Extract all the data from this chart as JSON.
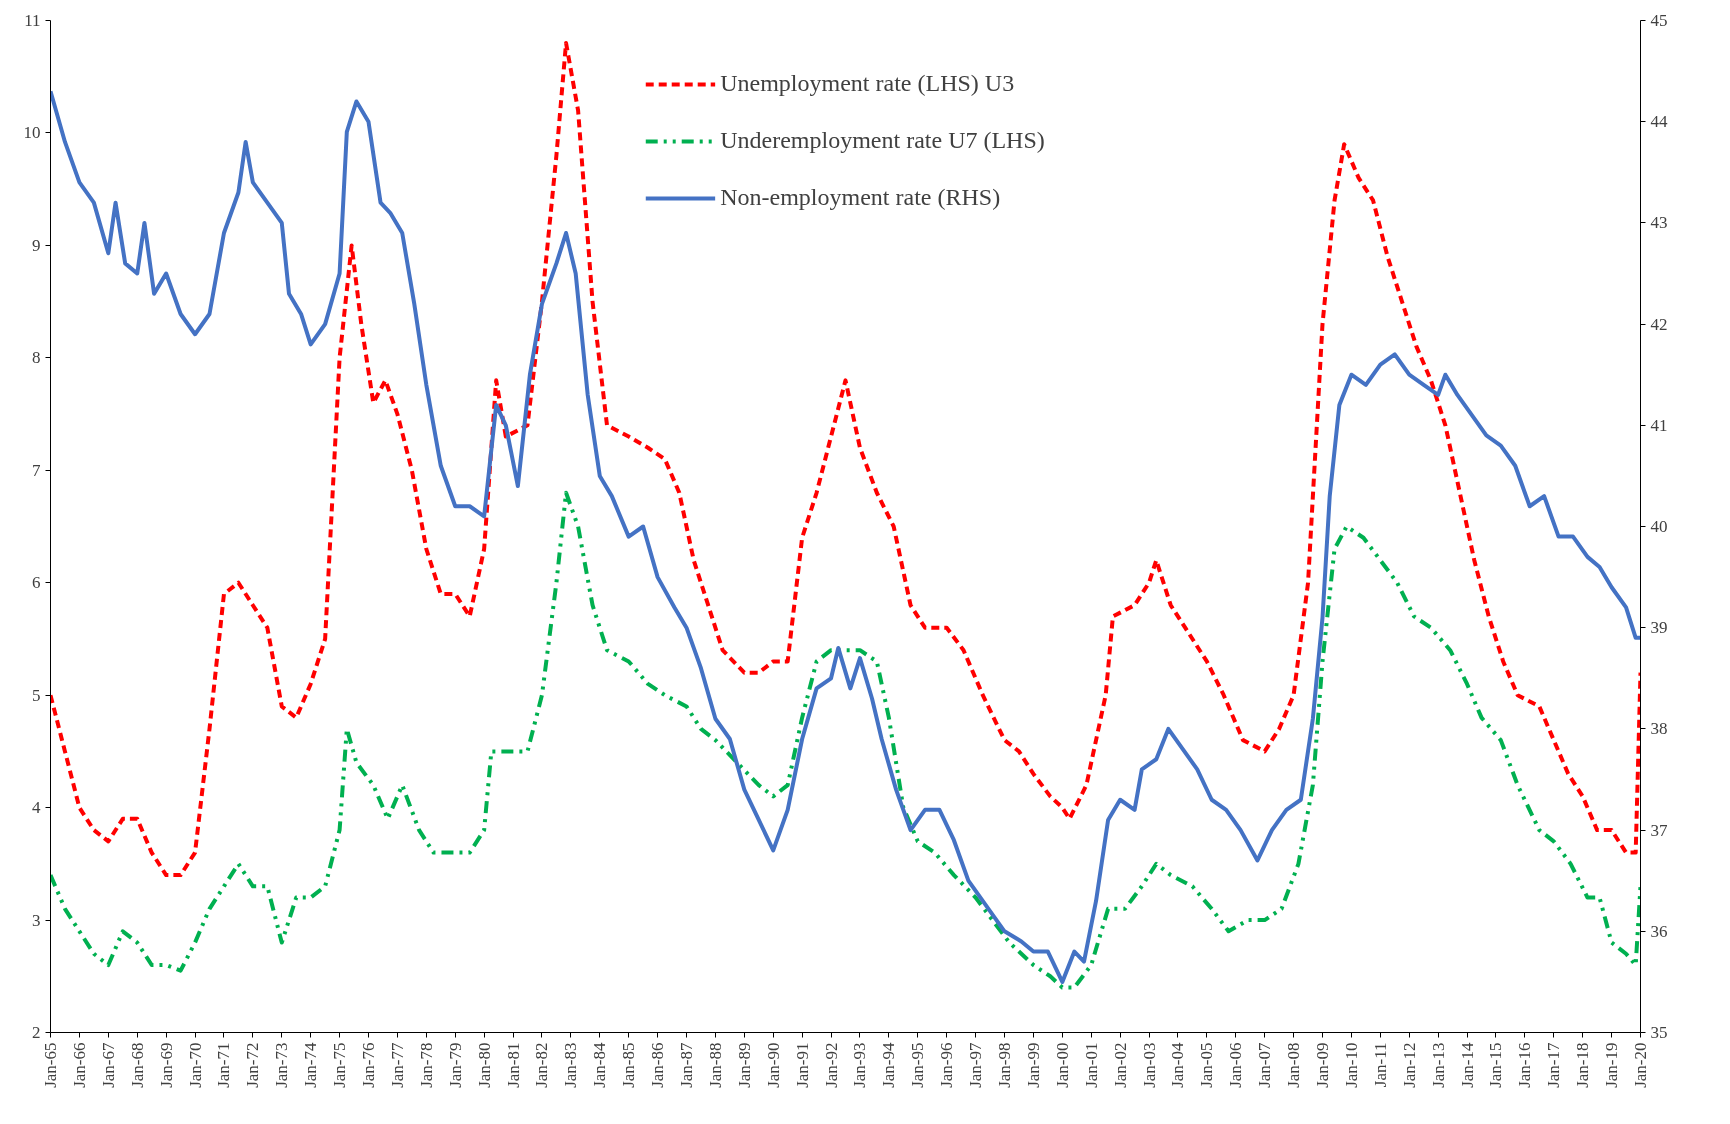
{
  "chart_data": {
    "type": "line",
    "legend": "top",
    "grid": false,
    "xlim": [
      "1965-01",
      "2020-01"
    ],
    "xticks": [
      {
        "value": "1965-01",
        "label": "Jan-65"
      },
      {
        "value": "1966-01",
        "label": "Jan-66"
      },
      {
        "value": "1967-01",
        "label": "Jan-67"
      },
      {
        "value": "1968-01",
        "label": "Jan-68"
      },
      {
        "value": "1969-01",
        "label": "Jan-69"
      },
      {
        "value": "1970-01",
        "label": "Jan-70"
      },
      {
        "value": "1971-01",
        "label": "Jan-71"
      },
      {
        "value": "1972-01",
        "label": "Jan-72"
      },
      {
        "value": "1973-01",
        "label": "Jan-73"
      },
      {
        "value": "1974-01",
        "label": "Jan-74"
      },
      {
        "value": "1975-01",
        "label": "Jan-75"
      },
      {
        "value": "1976-01",
        "label": "Jan-76"
      },
      {
        "value": "1977-01",
        "label": "Jan-77"
      },
      {
        "value": "1978-01",
        "label": "Jan-78"
      },
      {
        "value": "1979-01",
        "label": "Jan-79"
      },
      {
        "value": "1980-01",
        "label": "Jan-80"
      },
      {
        "value": "1981-01",
        "label": "Jan-81"
      },
      {
        "value": "1982-01",
        "label": "Jan-82"
      },
      {
        "value": "1983-01",
        "label": "Jan-83"
      },
      {
        "value": "1984-01",
        "label": "Jan-84"
      },
      {
        "value": "1985-01",
        "label": "Jan-85"
      },
      {
        "value": "1986-01",
        "label": "Jan-86"
      },
      {
        "value": "1987-01",
        "label": "Jan-87"
      },
      {
        "value": "1988-01",
        "label": "Jan-88"
      },
      {
        "value": "1989-01",
        "label": "Jan-89"
      },
      {
        "value": "1990-01",
        "label": "Jan-90"
      },
      {
        "value": "1991-01",
        "label": "Jan-91"
      },
      {
        "value": "1992-01",
        "label": "Jan-92"
      },
      {
        "value": "1993-01",
        "label": "Jan-93"
      },
      {
        "value": "1994-01",
        "label": "Jan-94"
      },
      {
        "value": "1995-01",
        "label": "Jan-95"
      },
      {
        "value": "1996-01",
        "label": "Jan-96"
      },
      {
        "value": "1997-01",
        "label": "Jan-97"
      },
      {
        "value": "1998-01",
        "label": "Jan-98"
      },
      {
        "value": "1999-01",
        "label": "Jan-99"
      },
      {
        "value": "2000-01",
        "label": "Jan-00"
      },
      {
        "value": "2001-01",
        "label": "Jan-01"
      },
      {
        "value": "2002-01",
        "label": "Jan-02"
      },
      {
        "value": "2003-01",
        "label": "Jan-03"
      },
      {
        "value": "2004-01",
        "label": "Jan-04"
      },
      {
        "value": "2005-01",
        "label": "Jan-05"
      },
      {
        "value": "2006-01",
        "label": "Jan-06"
      },
      {
        "value": "2007-01",
        "label": "Jan-07"
      },
      {
        "value": "2008-01",
        "label": "Jan-08"
      },
      {
        "value": "2009-01",
        "label": "Jan-09"
      },
      {
        "value": "2010-01",
        "label": "Jan-10"
      },
      {
        "value": "2011-01",
        "label": "Jan-11"
      },
      {
        "value": "2012-01",
        "label": "Jan-12"
      },
      {
        "value": "2013-01",
        "label": "Jan-13"
      },
      {
        "value": "2014-01",
        "label": "Jan-14"
      },
      {
        "value": "2015-01",
        "label": "Jan-15"
      },
      {
        "value": "2016-01",
        "label": "Jan-16"
      },
      {
        "value": "2017-01",
        "label": "Jan-17"
      },
      {
        "value": "2018-01",
        "label": "Jan-18"
      },
      {
        "value": "2019-01",
        "label": "Jan-19"
      },
      {
        "value": "2020-01",
        "label": "Jan-20"
      }
    ],
    "ylim": [
      2,
      11
    ],
    "yticks": [
      2,
      3,
      4,
      5,
      6,
      7,
      8,
      9,
      10,
      11
    ],
    "y2lim": [
      35,
      45
    ],
    "y2ticks": [
      35,
      36,
      37,
      38,
      39,
      40,
      41,
      42,
      43,
      44,
      45
    ],
    "series": [
      {
        "name": "Unemployment rate (LHS) U3",
        "color": "#ff0000",
        "line_style": "dashed",
        "x": [
          "1965-01",
          "1965-07",
          "1966-01",
          "1966-07",
          "1967-01",
          "1967-07",
          "1968-01",
          "1968-07",
          "1969-01",
          "1969-07",
          "1970-01",
          "1970-07",
          "1971-01",
          "1971-07",
          "1972-01",
          "1972-07",
          "1973-01",
          "1973-07",
          "1974-01",
          "1974-07",
          "1975-01",
          "1975-06",
          "1975-10",
          "1976-03",
          "1976-08",
          "1977-01",
          "1977-07",
          "1978-01",
          "1978-07",
          "1979-01",
          "1979-07",
          "1980-01",
          "1980-06",
          "1980-10",
          "1981-07",
          "1982-01",
          "1982-07",
          "1982-11",
          "1983-04",
          "1983-10",
          "1984-04",
          "1985-01",
          "1985-09",
          "1986-04",
          "1986-10",
          "1987-04",
          "1987-10",
          "1988-04",
          "1989-01",
          "1989-07",
          "1990-01",
          "1990-07",
          "1991-01",
          "1991-07",
          "1992-01",
          "1992-07",
          "1993-01",
          "1993-08",
          "1994-03",
          "1994-10",
          "1995-04",
          "1996-01",
          "1996-08",
          "1997-04",
          "1998-01",
          "1998-07",
          "1999-01",
          "1999-08",
          "2000-01",
          "2000-04",
          "2000-11",
          "2001-07",
          "2001-10",
          "2002-07",
          "2003-01",
          "2003-04",
          "2003-10",
          "2004-04",
          "2005-01",
          "2005-08",
          "2006-04",
          "2007-01",
          "2007-07",
          "2008-01",
          "2008-07",
          "2009-01",
          "2009-06",
          "2009-10",
          "2010-04",
          "2010-10",
          "2011-04",
          "2011-10",
          "2012-04",
          "2012-10",
          "2013-04",
          "2013-10",
          "2014-04",
          "2014-10",
          "2015-04",
          "2015-10",
          "2016-07",
          "2017-01",
          "2017-07",
          "2018-01",
          "2018-07",
          "2019-01",
          "2019-07",
          "2019-11",
          "2020-01"
        ],
        "values": [
          5.0,
          4.5,
          4.0,
          3.8,
          3.7,
          3.9,
          3.9,
          3.6,
          3.4,
          3.4,
          3.6,
          4.7,
          5.9,
          6.0,
          5.8,
          5.6,
          4.9,
          4.8,
          5.1,
          5.5,
          8.0,
          9.0,
          8.3,
          7.6,
          7.8,
          7.5,
          7.0,
          6.3,
          5.9,
          5.9,
          5.7,
          6.3,
          7.8,
          7.3,
          7.4,
          8.5,
          9.8,
          10.8,
          10.2,
          8.5,
          7.4,
          7.3,
          7.2,
          7.1,
          6.8,
          6.2,
          5.8,
          5.4,
          5.2,
          5.2,
          5.3,
          5.3,
          6.4,
          6.8,
          7.3,
          7.8,
          7.2,
          6.8,
          6.5,
          5.8,
          5.6,
          5.6,
          5.4,
          5.0,
          4.6,
          4.5,
          4.3,
          4.1,
          4.0,
          3.9,
          4.2,
          5.0,
          5.7,
          5.8,
          6.0,
          6.2,
          5.8,
          5.6,
          5.3,
          5.0,
          4.6,
          4.5,
          4.7,
          5.0,
          6.0,
          8.3,
          9.4,
          9.9,
          9.6,
          9.4,
          8.9,
          8.5,
          8.1,
          7.8,
          7.4,
          6.8,
          6.2,
          5.7,
          5.3,
          5.0,
          4.9,
          4.6,
          4.3,
          4.1,
          3.8,
          3.8,
          3.6,
          3.6,
          5.2
        ]
      },
      {
        "name": "Underemployment rate U7 (LHS)",
        "color": "#00b050",
        "line_style": "dashdot",
        "x": [
          "1965-01",
          "1965-07",
          "1966-01",
          "1966-07",
          "1967-01",
          "1967-07",
          "1968-01",
          "1968-07",
          "1969-01",
          "1969-07",
          "1970-01",
          "1970-07",
          "1971-01",
          "1971-07",
          "1972-01",
          "1972-07",
          "1973-01",
          "1973-07",
          "1974-01",
          "1974-07",
          "1975-01",
          "1975-04",
          "1975-08",
          "1976-03",
          "1976-09",
          "1977-03",
          "1977-10",
          "1978-04",
          "1979-01",
          "1979-07",
          "1980-01",
          "1980-04",
          "1980-10",
          "1981-07",
          "1982-01",
          "1982-07",
          "1982-11",
          "1983-04",
          "1983-10",
          "1984-04",
          "1985-01",
          "1985-09",
          "1986-04",
          "1987-01",
          "1987-07",
          "1988-01",
          "1988-10",
          "1989-07",
          "1990-01",
          "1990-07",
          "1991-01",
          "1991-07",
          "1992-01",
          "1992-07",
          "1993-01",
          "1993-08",
          "1994-01",
          "1994-07",
          "1995-01",
          "1995-08",
          "1996-04",
          "1997-01",
          "1997-08",
          "1998-03",
          "1999-01",
          "1999-08",
          "2000-01",
          "2000-06",
          "2001-01",
          "2001-08",
          "2002-03",
          "2002-10",
          "2003-04",
          "2003-10",
          "2004-07",
          "2005-03",
          "2005-10",
          "2006-06",
          "2007-01",
          "2007-08",
          "2008-03",
          "2008-09",
          "2009-01",
          "2009-06",
          "2009-11",
          "2010-06",
          "2011-01",
          "2011-08",
          "2012-03",
          "2012-10",
          "2013-06",
          "2014-01",
          "2014-07",
          "2015-03",
          "2015-10",
          "2016-07",
          "2017-01",
          "2017-08",
          "2018-03",
          "2018-08",
          "2019-01",
          "2019-07",
          "2019-11",
          "2020-01"
        ],
        "values": [
          3.4,
          3.1,
          2.9,
          2.7,
          2.6,
          2.9,
          2.8,
          2.6,
          2.6,
          2.55,
          2.8,
          3.1,
          3.3,
          3.5,
          3.3,
          3.3,
          2.8,
          3.2,
          3.2,
          3.3,
          3.8,
          4.7,
          4.4,
          4.2,
          3.9,
          4.2,
          3.8,
          3.6,
          3.6,
          3.6,
          3.8,
          4.5,
          4.5,
          4.5,
          5.0,
          6.0,
          6.8,
          6.5,
          5.8,
          5.4,
          5.3,
          5.1,
          5.0,
          4.9,
          4.7,
          4.6,
          4.4,
          4.2,
          4.1,
          4.2,
          4.8,
          5.3,
          5.4,
          5.4,
          5.4,
          5.3,
          4.8,
          4.0,
          3.7,
          3.6,
          3.4,
          3.2,
          3.0,
          2.8,
          2.6,
          2.5,
          2.4,
          2.4,
          2.6,
          3.1,
          3.1,
          3.3,
          3.5,
          3.4,
          3.3,
          3.1,
          2.9,
          3.0,
          3.0,
          3.1,
          3.5,
          4.2,
          5.3,
          6.3,
          6.5,
          6.4,
          6.2,
          6.0,
          5.7,
          5.6,
          5.4,
          5.1,
          4.8,
          4.6,
          4.2,
          3.8,
          3.7,
          3.5,
          3.2,
          3.2,
          2.8,
          2.7,
          2.6,
          3.3
        ]
      },
      {
        "name": "Non-employment rate (RHS)",
        "color": "#4472c4",
        "line_style": "solid",
        "axis": "y2",
        "x": [
          "1965-01",
          "1965-07",
          "1966-01",
          "1966-07",
          "1967-01",
          "1967-04",
          "1967-08",
          "1968-01",
          "1968-04",
          "1968-08",
          "1969-01",
          "1969-07",
          "1970-01",
          "1970-07",
          "1971-01",
          "1971-07",
          "1971-10",
          "1972-01",
          "1972-07",
          "1973-01",
          "1973-04",
          "1973-09",
          "1974-01",
          "1974-07",
          "1975-01",
          "1975-04",
          "1975-08",
          "1976-01",
          "1976-06",
          "1976-10",
          "1977-03",
          "1977-08",
          "1978-01",
          "1978-07",
          "1979-01",
          "1979-07",
          "1980-01",
          "1980-06",
          "1980-10",
          "1981-03",
          "1981-08",
          "1982-01",
          "1982-07",
          "1982-11",
          "1983-03",
          "1983-08",
          "1984-01",
          "1984-06",
          "1985-01",
          "1985-07",
          "1986-01",
          "1986-08",
          "1987-01",
          "1987-07",
          "1988-01",
          "1988-07",
          "1989-01",
          "1989-07",
          "1990-01",
          "1990-07",
          "1991-01",
          "1991-07",
          "1992-01",
          "1992-04",
          "1992-09",
          "1993-01",
          "1993-06",
          "1993-10",
          "1994-04",
          "1994-10",
          "1995-04",
          "1995-10",
          "1996-04",
          "1996-10",
          "1997-07",
          "1998-01",
          "1998-08",
          "1999-01",
          "1999-07",
          "2000-01",
          "2000-06",
          "2000-10",
          "2001-03",
          "2001-08",
          "2002-01",
          "2002-07",
          "2002-10",
          "2003-04",
          "2003-09",
          "2004-03",
          "2004-09",
          "2005-03",
          "2005-09",
          "2006-03",
          "2006-10",
          "2007-04",
          "2007-10",
          "2008-04",
          "2008-09",
          "2009-01",
          "2009-04",
          "2009-08",
          "2010-01",
          "2010-07",
          "2011-01",
          "2011-07",
          "2012-01",
          "2012-07",
          "2013-01",
          "2013-04",
          "2013-09",
          "2014-03",
          "2014-09",
          "2015-03",
          "2015-09",
          "2016-03",
          "2016-09",
          "2017-03",
          "2017-09",
          "2018-03",
          "2018-08",
          "2019-01",
          "2019-07",
          "2019-11",
          "2020-01"
        ],
        "values": [
          44.3,
          43.8,
          43.4,
          43.2,
          42.7,
          43.2,
          42.6,
          42.5,
          43.0,
          42.3,
          42.5,
          42.1,
          41.9,
          42.1,
          42.9,
          43.3,
          43.8,
          43.4,
          43.2,
          43.0,
          42.3,
          42.1,
          41.8,
          42.0,
          42.5,
          43.9,
          44.2,
          44.0,
          43.2,
          43.1,
          42.9,
          42.2,
          41.4,
          40.6,
          40.2,
          40.2,
          40.1,
          41.2,
          41.0,
          40.4,
          41.5,
          42.2,
          42.6,
          42.9,
          42.5,
          41.3,
          40.5,
          40.3,
          39.9,
          40.0,
          39.5,
          39.2,
          39.0,
          38.6,
          38.1,
          37.9,
          37.4,
          37.1,
          36.8,
          37.2,
          37.9,
          38.4,
          38.5,
          38.8,
          38.4,
          38.7,
          38.3,
          37.9,
          37.4,
          37.0,
          37.2,
          37.2,
          36.9,
          36.5,
          36.2,
          36.0,
          35.9,
          35.8,
          35.8,
          35.5,
          35.8,
          35.7,
          36.3,
          37.1,
          37.3,
          37.2,
          37.6,
          37.7,
          38.0,
          37.8,
          37.6,
          37.3,
          37.2,
          37.0,
          36.7,
          37.0,
          37.2,
          37.3,
          38.1,
          39.1,
          40.3,
          41.2,
          41.5,
          41.4,
          41.6,
          41.7,
          41.5,
          41.4,
          41.3,
          41.5,
          41.3,
          41.1,
          40.9,
          40.8,
          40.6,
          40.2,
          40.3,
          39.9,
          39.9,
          39.7,
          39.6,
          39.4,
          39.2,
          38.9,
          38.9
        ]
      }
    ]
  }
}
